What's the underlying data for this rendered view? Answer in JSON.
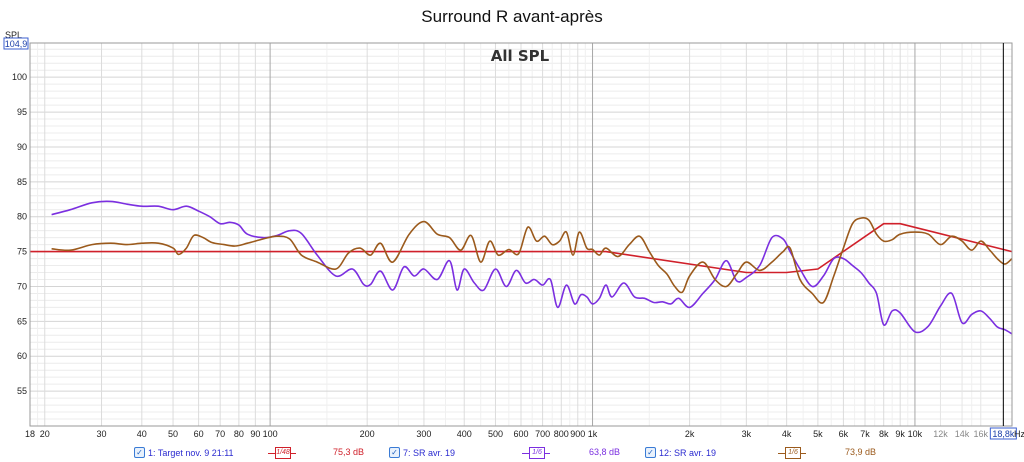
{
  "chart_data": {
    "type": "line",
    "title": "Surround R avant-après",
    "subtitle": "All SPL",
    "ylabel": "SPL",
    "xunit": "Hz",
    "xscale": "log",
    "xlim": [
      18,
      20000
    ],
    "ylim": [
      50,
      104.9
    ],
    "ytop_label": "104,9",
    "xmax_label": "18,8k",
    "xmax_value": 18800,
    "yticks": [
      55,
      60,
      65,
      70,
      75,
      80,
      85,
      90,
      95,
      100
    ],
    "xticks_major": [
      {
        "v": 18,
        "label": "18"
      },
      {
        "v": 20,
        "label": "20"
      },
      {
        "v": 30,
        "label": "30"
      },
      {
        "v": 40,
        "label": "40"
      },
      {
        "v": 50,
        "label": "50"
      },
      {
        "v": 60,
        "label": "60"
      },
      {
        "v": 70,
        "label": "70"
      },
      {
        "v": 80,
        "label": "80"
      },
      {
        "v": 90,
        "label": "90"
      },
      {
        "v": 100,
        "label": "100"
      },
      {
        "v": 200,
        "label": "200"
      },
      {
        "v": 300,
        "label": "300"
      },
      {
        "v": 400,
        "label": "400"
      },
      {
        "v": 500,
        "label": "500"
      },
      {
        "v": 600,
        "label": "600"
      },
      {
        "v": 700,
        "label": "700"
      },
      {
        "v": 800,
        "label": "800"
      },
      {
        "v": 900,
        "label": "900"
      },
      {
        "v": 1000,
        "label": "1k"
      },
      {
        "v": 2000,
        "label": "2k"
      },
      {
        "v": 3000,
        "label": "3k"
      },
      {
        "v": 4000,
        "label": "4k"
      },
      {
        "v": 5000,
        "label": "5k"
      },
      {
        "v": 6000,
        "label": "6k"
      },
      {
        "v": 7000,
        "label": "7k"
      },
      {
        "v": 8000,
        "label": "8k"
      },
      {
        "v": 9000,
        "label": "9k"
      },
      {
        "v": 10000,
        "label": "10k"
      }
    ],
    "xticks_minor": [
      {
        "v": 12000,
        "label": "12k"
      },
      {
        "v": 14000,
        "label": "14k"
      },
      {
        "v": 16000,
        "label": "16k"
      }
    ],
    "series": [
      {
        "name": "1: Target nov. 9 21:11",
        "color": "#d0202a",
        "smoothing": "1/48",
        "value_label": "75,3 dB",
        "x": [
          18,
          1000,
          1100,
          3000,
          4000,
          5000,
          8000,
          9000,
          20000
        ],
        "y": [
          75,
          75,
          75,
          72,
          72,
          72.5,
          79,
          79,
          75
        ]
      },
      {
        "name": "7: SR avr. 19",
        "color": "#7b2fe0",
        "smoothing": "1/6",
        "value_label": "63,8 dB",
        "x": [
          21,
          24,
          28,
          32,
          36,
          40,
          45,
          50,
          55,
          60,
          65,
          70,
          75,
          80,
          85,
          95,
          105,
          115,
          125,
          140,
          160,
          180,
          195,
          205,
          220,
          240,
          260,
          280,
          300,
          330,
          360,
          380,
          400,
          430,
          460,
          500,
          540,
          580,
          620,
          660,
          700,
          740,
          780,
          830,
          880,
          920,
          960,
          1000,
          1050,
          1100,
          1150,
          1250,
          1350,
          1450,
          1550,
          1650,
          1750,
          1850,
          2000,
          2200,
          2400,
          2600,
          2800,
          3000,
          3300,
          3600,
          3900,
          4100,
          4400,
          4800,
          5200,
          5600,
          6000,
          6400,
          6800,
          7200,
          7600,
          8000,
          8500,
          9000,
          10000,
          11000,
          12000,
          13000,
          14000,
          15000,
          16000,
          17000,
          18000,
          19000,
          20000
        ],
        "y": [
          80.3,
          81,
          82,
          82.2,
          81.8,
          81.5,
          81.5,
          81,
          81.5,
          80.8,
          80,
          79,
          79.2,
          78.8,
          77.5,
          77,
          77.3,
          78,
          77.6,
          74.5,
          71.5,
          72.5,
          70.3,
          70.3,
          72.2,
          69.5,
          72.8,
          71.5,
          72.5,
          71,
          73.7,
          69.5,
          72.5,
          70.5,
          69.5,
          72.5,
          70,
          72.3,
          70.5,
          71,
          70.2,
          71,
          67,
          70.2,
          67.5,
          68.8,
          68.5,
          67.5,
          68.3,
          70.2,
          68.5,
          70.5,
          68.5,
          68.3,
          67.7,
          67.8,
          67.5,
          68.3,
          67,
          69,
          71,
          73.7,
          70.8,
          71.3,
          73,
          77,
          76.8,
          75,
          72.5,
          70,
          71.5,
          74,
          74,
          73,
          72,
          70.5,
          69,
          64.5,
          66.5,
          66.2,
          63.5,
          64.3,
          67.2,
          69,
          64.8,
          66,
          66.5,
          65.5,
          64.2,
          63.8,
          63.2
        ]
      },
      {
        "name": "12: SR avr. 19",
        "color": "#9b5a1c",
        "smoothing": "1/6",
        "value_label": "73,9 dB",
        "x": [
          21,
          24,
          28,
          32,
          36,
          40,
          45,
          50,
          52,
          55,
          58,
          62,
          66,
          72,
          78,
          85,
          95,
          105,
          115,
          125,
          140,
          160,
          175,
          190,
          205,
          220,
          240,
          270,
          300,
          330,
          360,
          390,
          420,
          450,
          480,
          510,
          550,
          590,
          630,
          670,
          710,
          750,
          790,
          830,
          870,
          910,
          960,
          1000,
          1050,
          1100,
          1200,
          1300,
          1400,
          1500,
          1600,
          1700,
          1800,
          1900,
          2000,
          2200,
          2400,
          2600,
          2800,
          3000,
          3300,
          3600,
          3900,
          4100,
          4400,
          4800,
          5200,
          5600,
          6000,
          6400,
          6800,
          7200,
          7600,
          8000,
          8500,
          9000,
          10000,
          11000,
          12000,
          13000,
          14000,
          15000,
          16000,
          17000,
          18000,
          19000,
          20000
        ],
        "y": [
          75.4,
          75.2,
          76,
          76.2,
          76,
          76.2,
          76.2,
          75.5,
          74.6,
          75.5,
          77.3,
          77,
          76.3,
          76,
          75.8,
          76.2,
          76.8,
          77.2,
          76.8,
          74.5,
          73.5,
          72.5,
          74.8,
          75.5,
          74.5,
          76.2,
          73.5,
          77.5,
          79.3,
          77.5,
          77,
          75.2,
          77.3,
          73.5,
          76.5,
          74.5,
          75.3,
          74.7,
          78.5,
          76.5,
          77.2,
          76,
          76.5,
          77.8,
          74.5,
          77.8,
          75.5,
          75.3,
          74.5,
          75.5,
          74.3,
          76,
          77.2,
          75,
          73,
          71.8,
          70,
          69.2,
          71.5,
          73.5,
          71,
          70,
          71.8,
          73.5,
          72.3,
          73.5,
          75,
          75.5,
          71,
          69,
          67.7,
          71.5,
          75.5,
          79,
          79.8,
          79.5,
          77.5,
          76.5,
          76.7,
          77.5,
          77.8,
          77.5,
          76,
          77.2,
          76.5,
          75.2,
          76.5,
          75.3,
          74,
          73.2,
          74
        ]
      }
    ]
  },
  "legend": {
    "s1": {
      "name": "1: Target nov. 9 21:11",
      "smooth": "1/48",
      "value": "75,3 dB",
      "check": "✓"
    },
    "s2": {
      "name": "7: SR avr. 19",
      "smooth": "1/6",
      "value": "63,8 dB",
      "check": "✓"
    },
    "s3": {
      "name": "12: SR avr. 19",
      "smooth": "1/6",
      "value": "73,9 dB",
      "check": "✓"
    }
  }
}
